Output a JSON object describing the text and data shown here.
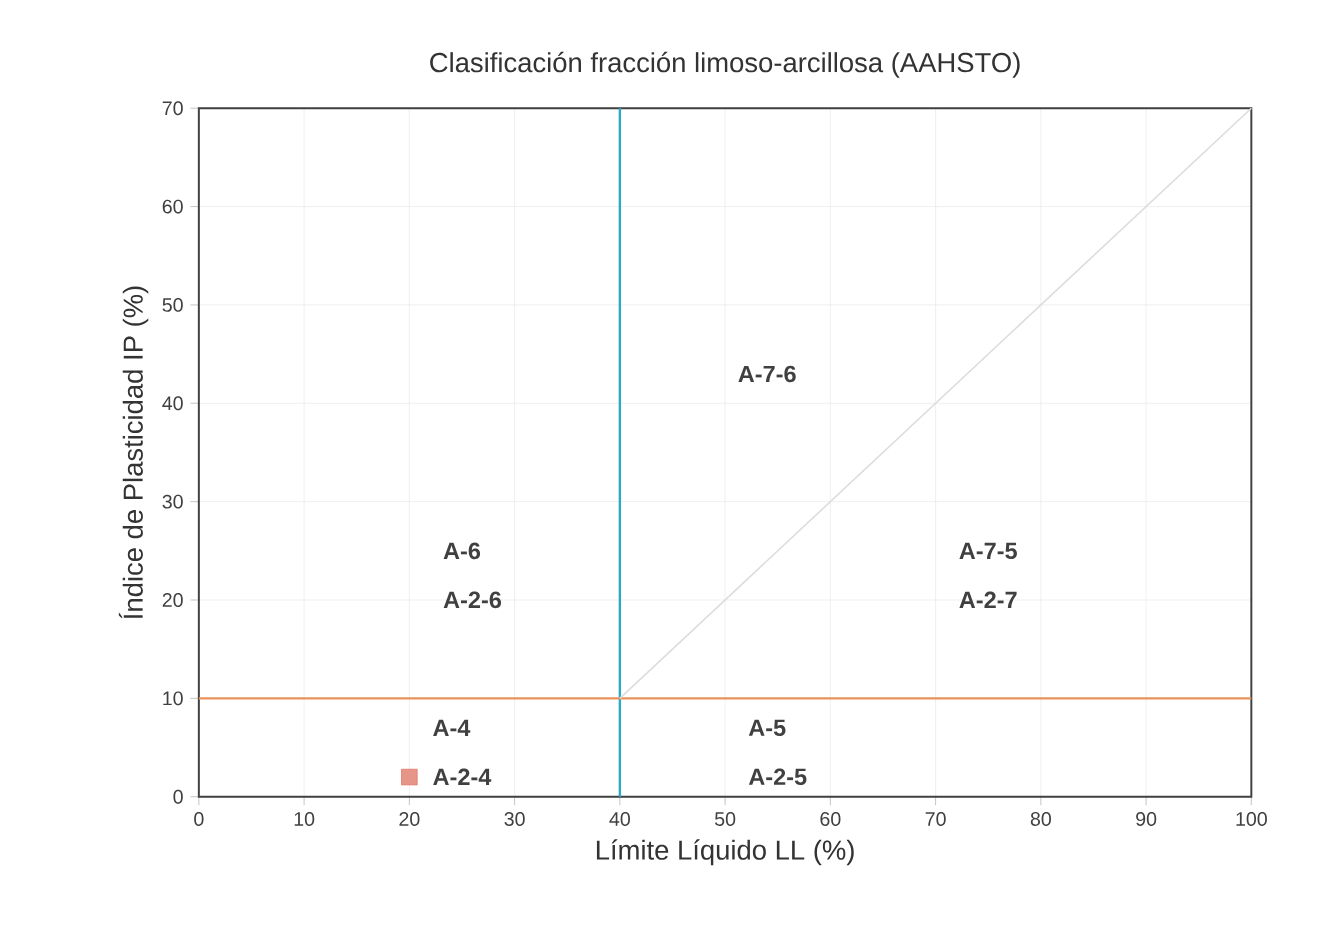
{
  "chart_data": {
    "type": "scatter",
    "title": "Clasificación fracción limoso-arcillosa (AAHSTO)",
    "xlabel": "Límite Líquido LL (%)",
    "ylabel": "Índice de Plasticidad IP (%)",
    "xlim": [
      0,
      100
    ],
    "ylim": [
      0,
      70
    ],
    "xticks": [
      0,
      10,
      20,
      30,
      40,
      50,
      60,
      70,
      80,
      90,
      100
    ],
    "yticks": [
      0,
      10,
      20,
      30,
      40,
      50,
      60,
      70
    ],
    "grid": true,
    "series": [
      {
        "type": "line",
        "x": [
          40,
          100
        ],
        "values": [
          10,
          70
        ],
        "color": "#dcdcdc",
        "marker": "none"
      },
      {
        "x": [
          20
        ],
        "values": [
          2
        ],
        "color": "#e07a6a",
        "marker": "square"
      }
    ],
    "ref_lines": [
      {
        "axis": "x",
        "value": 40,
        "color": "#2aaacb"
      },
      {
        "axis": "y",
        "value": 10,
        "color": "#e8925a"
      }
    ],
    "annotations": [
      "A-7-6",
      "A-6",
      "A-2-6",
      "A-7-5",
      "A-2-7",
      "A-4",
      "A-2-4",
      "A-5",
      "A-2-5"
    ]
  }
}
